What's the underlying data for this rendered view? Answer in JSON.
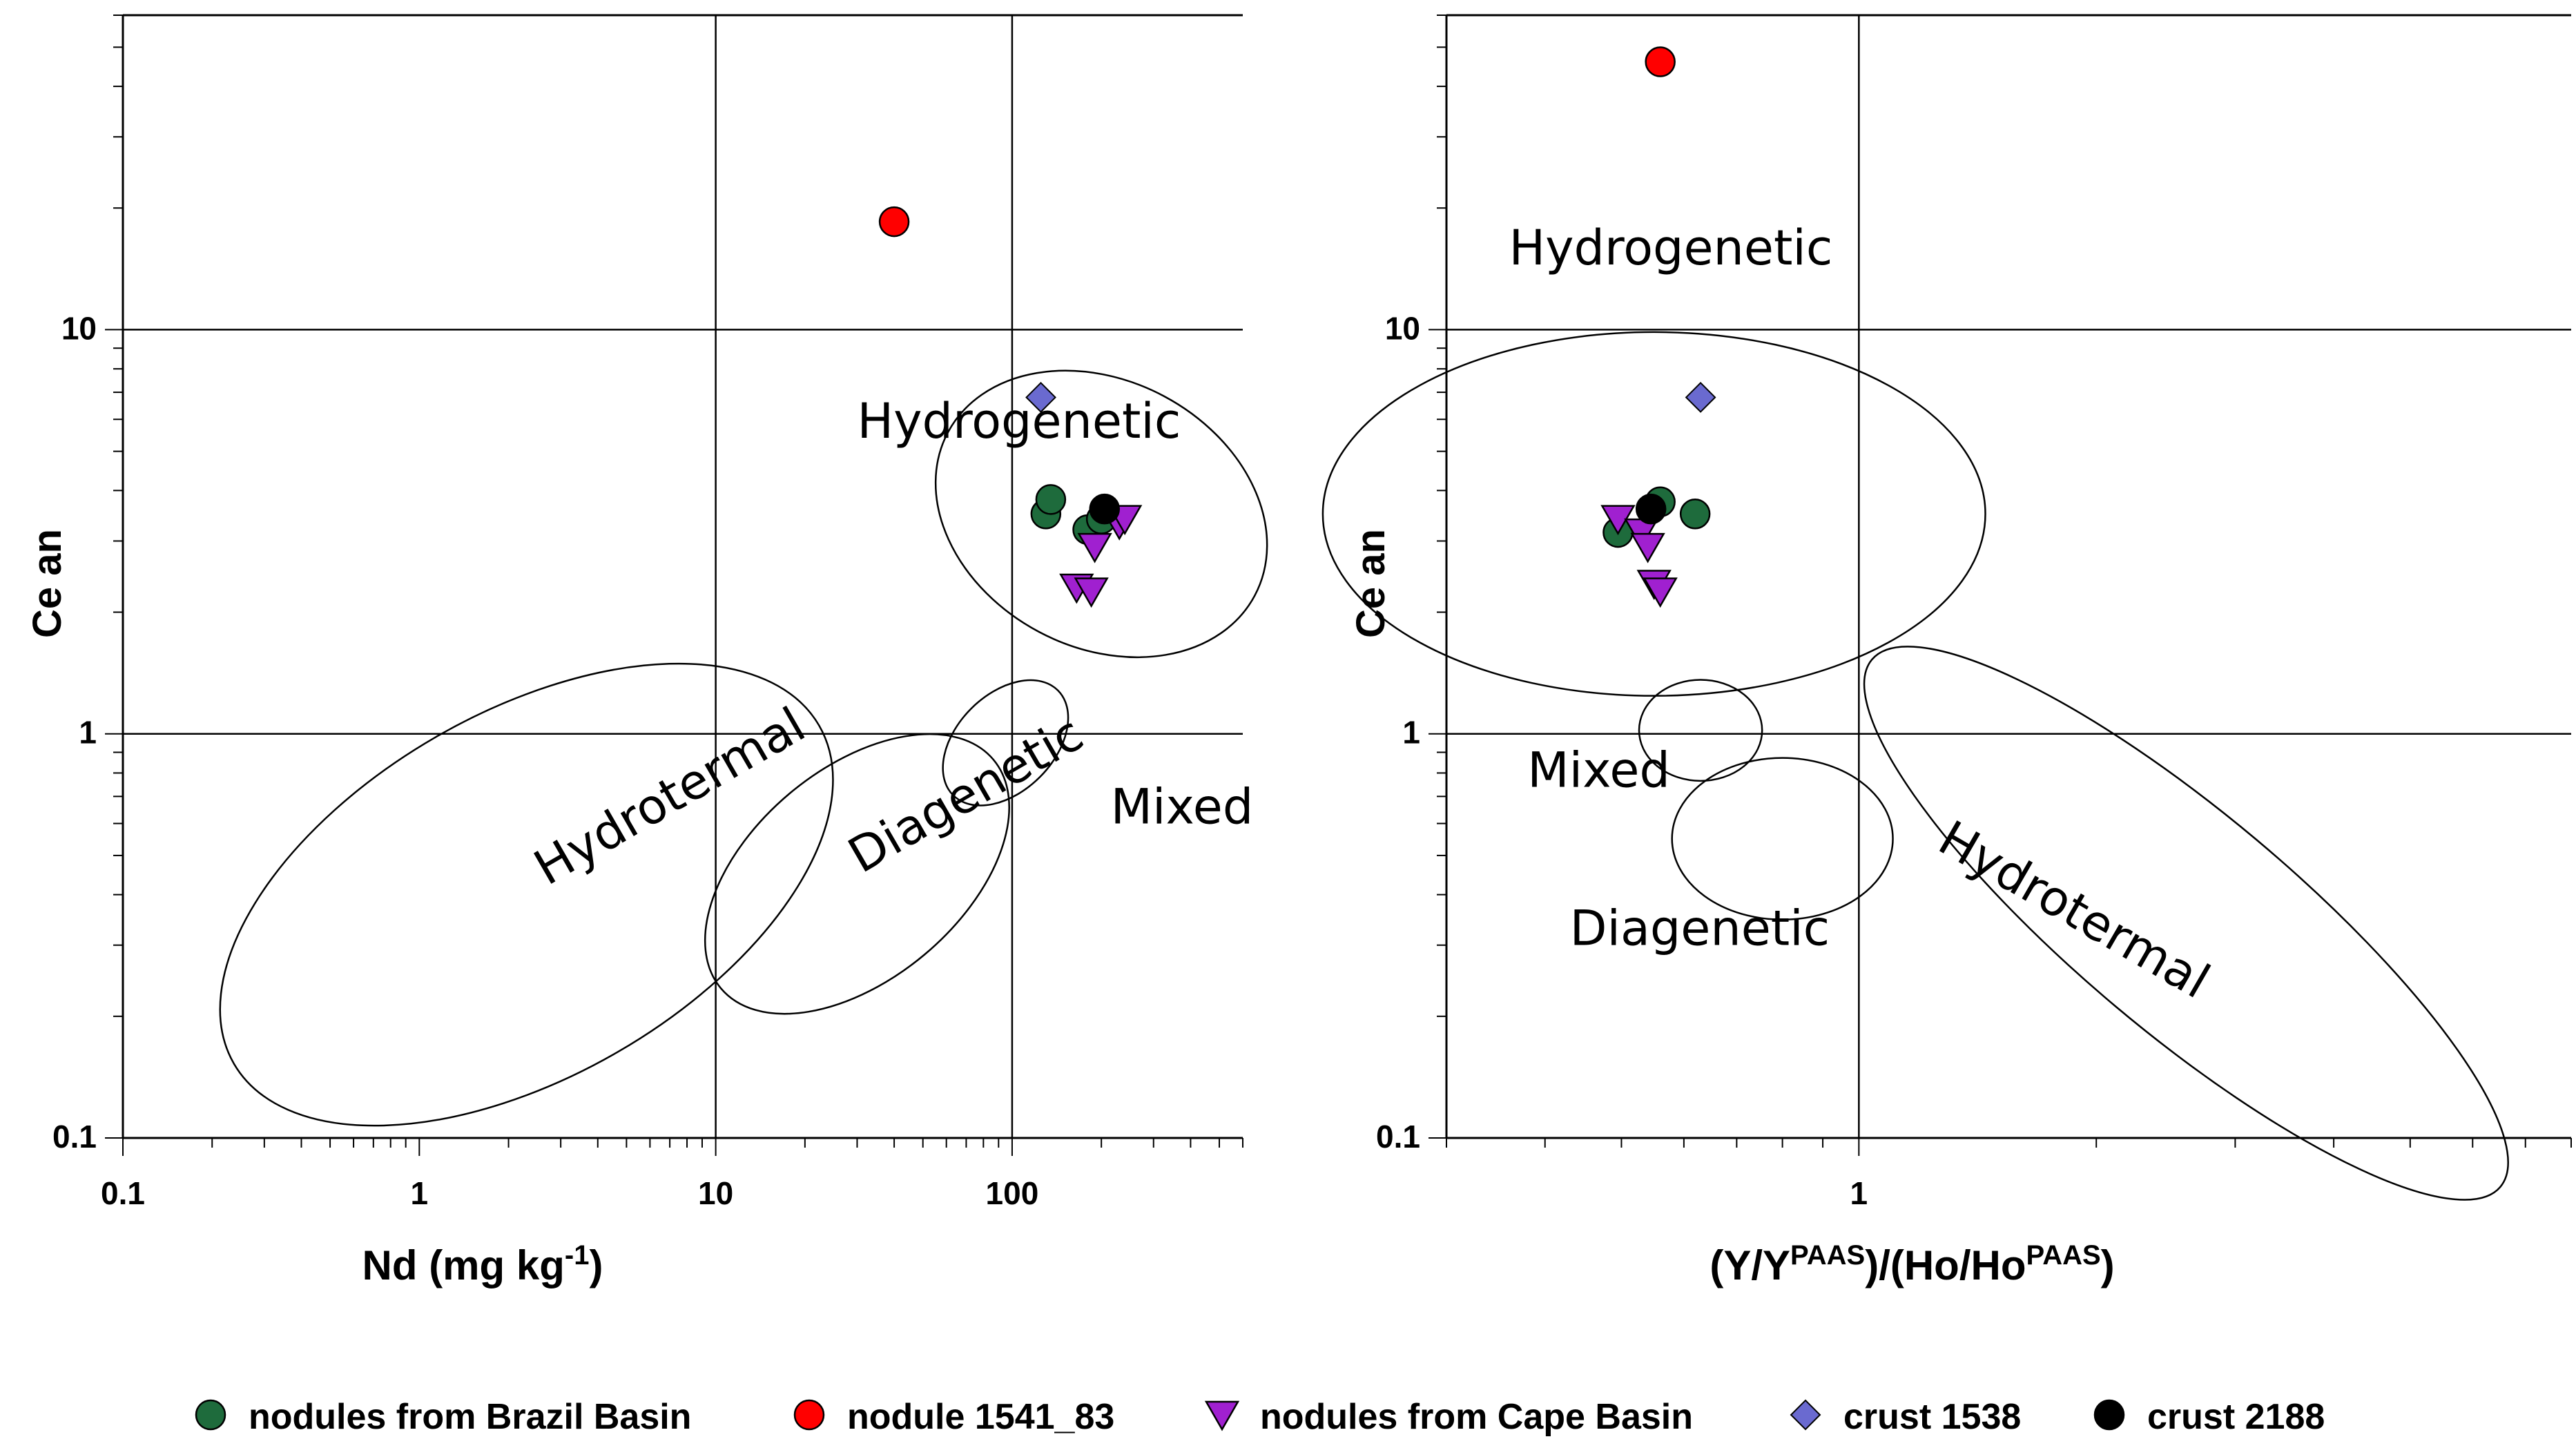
{
  "colors": {
    "brazil": "#1e6b3c",
    "nodule_1541": "#ff0000",
    "cape": "#a020d0",
    "crust_1538": "#6a6ad0",
    "crust_2188": "#000000"
  },
  "legend": [
    {
      "key": "brazil",
      "label": "nodules from Brazil Basin",
      "marker": "circle"
    },
    {
      "key": "nodule_1541",
      "label": "nodule 1541_83",
      "marker": "circle"
    },
    {
      "key": "cape",
      "label": "nodules from Cape Basin",
      "marker": "triangle-down"
    },
    {
      "key": "crust_1538",
      "label": "crust 1538",
      "marker": "diamond"
    },
    {
      "key": "crust_2188",
      "label": "crust 2188",
      "marker": "circle"
    }
  ],
  "chart_data": [
    {
      "type": "scatter",
      "title": "",
      "xlabel": "Nd (mg kg",
      "xlabel_sup": "-1",
      "xlabel_end": ")",
      "ylabel": "Ce an",
      "xscale": "log",
      "yscale": "log",
      "xlim": [
        0.1,
        600
      ],
      "ylim": [
        0.1,
        60
      ],
      "xticks": [
        {
          "v": 0.1,
          "label": "0.1"
        },
        {
          "v": 1,
          "label": "1"
        },
        {
          "v": 10,
          "label": "10"
        },
        {
          "v": 100,
          "label": "100"
        }
      ],
      "yticks": [
        {
          "v": 0.1,
          "label": "0.1"
        },
        {
          "v": 1,
          "label": "1"
        },
        {
          "v": 10,
          "label": "10"
        }
      ],
      "xgrid": [
        10,
        100
      ],
      "ygrid": [
        1,
        10
      ],
      "fields": [
        {
          "label": "Hydrogenetic",
          "label_x": 30,
          "label_y": 5.4,
          "label_rot": 0,
          "cx": 200,
          "cy": 3.5,
          "rx_dec": 0.45,
          "ry_dec": 0.43,
          "rot": -62
        },
        {
          "label": "Hydrotermal",
          "label_x": 2.7,
          "label_y": 0.42,
          "label_rot": -30,
          "cx": 2.3,
          "cy": 0.4,
          "rx_dec": 1.14,
          "ry_dec": 0.45,
          "rot": -30
        },
        {
          "label": "Diagenetic",
          "label_x": 31,
          "label_y": 0.45,
          "label_rot": -30,
          "cx": 30,
          "cy": 0.45,
          "rx_dec": 0.6,
          "ry_dec": 0.26,
          "rot": -40
        },
        {
          "label": "Mixed",
          "label_x": 215,
          "label_y": 0.6,
          "label_rot": 0,
          "cx": 95,
          "cy": 0.95,
          "rx_dec": 0.25,
          "ry_dec": 0.12,
          "rot": -45
        }
      ],
      "series": [
        {
          "name": "nodules from Brazil Basin",
          "key": "brazil",
          "marker": "circle",
          "x": [
            130,
            135,
            180,
            200
          ],
          "y": [
            3.5,
            3.8,
            3.2,
            3.4
          ]
        },
        {
          "name": "nodule 1541_83",
          "key": "nodule_1541",
          "marker": "circle",
          "x": [
            40
          ],
          "y": [
            18.5
          ]
        },
        {
          "name": "nodules from Cape Basin",
          "key": "cape",
          "marker": "triangle-down",
          "x": [
            190,
            230,
            240,
            165,
            185
          ],
          "y": [
            2.9,
            3.3,
            3.4,
            2.3,
            2.25
          ]
        },
        {
          "name": "crust 1538",
          "key": "crust_1538",
          "marker": "diamond",
          "x": [
            125
          ],
          "y": [
            6.8
          ]
        },
        {
          "name": "crust 2188",
          "key": "crust_2188",
          "marker": "circle",
          "x": [
            205
          ],
          "y": [
            3.6
          ]
        }
      ]
    },
    {
      "type": "scatter",
      "title": "",
      "xlabel": "(Y/Y",
      "xlabel_sup": "PAAS",
      "xlabel_mid": ")/(Ho/Ho",
      "xlabel_sup2": "PAAS",
      "xlabel_end": ")",
      "ylabel": "Ce an",
      "xscale": "log",
      "yscale": "log",
      "xlim": [
        0.3,
        8
      ],
      "ylim": [
        0.1,
        60
      ],
      "xticks": [
        {
          "v": 1,
          "label": "1"
        }
      ],
      "yticks": [
        {
          "v": 0.1,
          "label": "0.1"
        },
        {
          "v": 1,
          "label": "1"
        },
        {
          "v": 10,
          "label": "10"
        }
      ],
      "xgrid": [
        1
      ],
      "ygrid": [
        1,
        10
      ],
      "fields": [
        {
          "label": "Hydrogenetic",
          "label_x": 0.36,
          "label_y": 14.5,
          "label_rot": 0,
          "cx": 0.55,
          "cy": 3.5,
          "rx_dec": 0.42,
          "ry_dec": 0.45,
          "rot": 0
        },
        {
          "label": "Mixed",
          "label_x": 0.38,
          "label_y": 0.74,
          "label_rot": 0,
          "cx": 0.63,
          "cy": 1.02,
          "rx_dec": 0.078,
          "ry_dec": 0.125,
          "rot": 0
        },
        {
          "label": "Hydrotermal",
          "label_x": 1.25,
          "label_y": 0.52,
          "label_rot": 30,
          "cx": 2.6,
          "cy": 0.34,
          "rx_dec": 0.52,
          "ry_dec": 0.27,
          "rot": 40
        },
        {
          "label": "Diagenetic",
          "label_x": 0.43,
          "label_y": 0.3,
          "label_rot": 0,
          "cx": 0.8,
          "cy": 0.55,
          "rx_dec": 0.14,
          "ry_dec": 0.2,
          "rot": 0
        }
      ],
      "series": [
        {
          "name": "nodules from Brazil Basin",
          "key": "brazil",
          "marker": "circle",
          "x": [
            0.495,
            0.56,
            0.62
          ],
          "y": [
            3.15,
            3.75,
            3.5
          ]
        },
        {
          "name": "nodule 1541_83",
          "key": "nodule_1541",
          "marker": "circle",
          "x": [
            0.56
          ],
          "y": [
            46
          ]
        },
        {
          "name": "nodules from Cape Basin",
          "key": "cape",
          "marker": "triangle-down",
          "x": [
            0.495,
            0.53,
            0.54,
            0.55,
            0.56
          ],
          "y": [
            3.4,
            3.15,
            2.9,
            2.35,
            2.25
          ]
        },
        {
          "name": "crust 1538",
          "key": "crust_1538",
          "marker": "diamond",
          "x": [
            0.63
          ],
          "y": [
            6.8
          ]
        },
        {
          "name": "crust 2188",
          "key": "crust_2188",
          "marker": "circle",
          "x": [
            0.545
          ],
          "y": [
            3.6
          ]
        }
      ]
    }
  ]
}
